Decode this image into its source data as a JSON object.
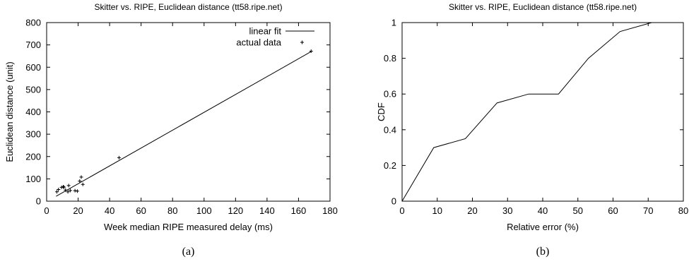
{
  "chart_data": [
    {
      "type": "line",
      "panel_label": "(a)",
      "title": "Skitter vs. RIPE, Euclidean distance (tt58.ripe.net)",
      "xlabel": "Week median RIPE measured delay (ms)",
      "ylabel": "Euclidean distance (unit)",
      "xlim": [
        0,
        180
      ],
      "ylim": [
        0,
        800
      ],
      "x_ticks": [
        "0",
        "20",
        "40",
        "60",
        "80",
        "100",
        "120",
        "140",
        "160",
        "180"
      ],
      "y_ticks": [
        "0",
        "100",
        "200",
        "300",
        "400",
        "500",
        "600",
        "700",
        "800"
      ],
      "grid": false,
      "legend_position": "top-right",
      "series": [
        {
          "name": "linear fit",
          "kind": "line",
          "x": [
            6,
            168
          ],
          "y": [
            22,
            670
          ]
        },
        {
          "name": "actual data",
          "kind": "scatter",
          "x": [
            6.5,
            7.5,
            9.5,
            10.5,
            11,
            12,
            13.5,
            14,
            15,
            18,
            19.5,
            21,
            22,
            23,
            46,
            168
          ],
          "y": [
            42,
            52,
            62,
            65,
            63,
            50,
            42,
            70,
            48,
            47,
            45,
            90,
            108,
            75,
            195,
            672
          ]
        }
      ]
    },
    {
      "type": "line",
      "panel_label": "(b)",
      "title": "Skitter vs. RIPE, Euclidean distance (tt58.ripe.net)",
      "xlabel": "Relative error (%)",
      "ylabel": "CDF",
      "xlim": [
        0,
        80
      ],
      "ylim": [
        0,
        1
      ],
      "x_ticks": [
        "0",
        "10",
        "20",
        "30",
        "40",
        "50",
        "60",
        "70",
        "80"
      ],
      "y_ticks": [
        "0",
        "0.2",
        "0.4",
        "0.6",
        "0.8",
        "1"
      ],
      "grid": false,
      "series": [
        {
          "x": [
            0,
            9,
            18,
            27,
            36,
            44.5,
            53,
            62,
            71
          ],
          "y": [
            0,
            0.3,
            0.35,
            0.55,
            0.6,
            0.6,
            0.8,
            0.95,
            1.0
          ]
        }
      ]
    }
  ],
  "colors": {
    "line": "#000000",
    "background": "#ffffff"
  }
}
